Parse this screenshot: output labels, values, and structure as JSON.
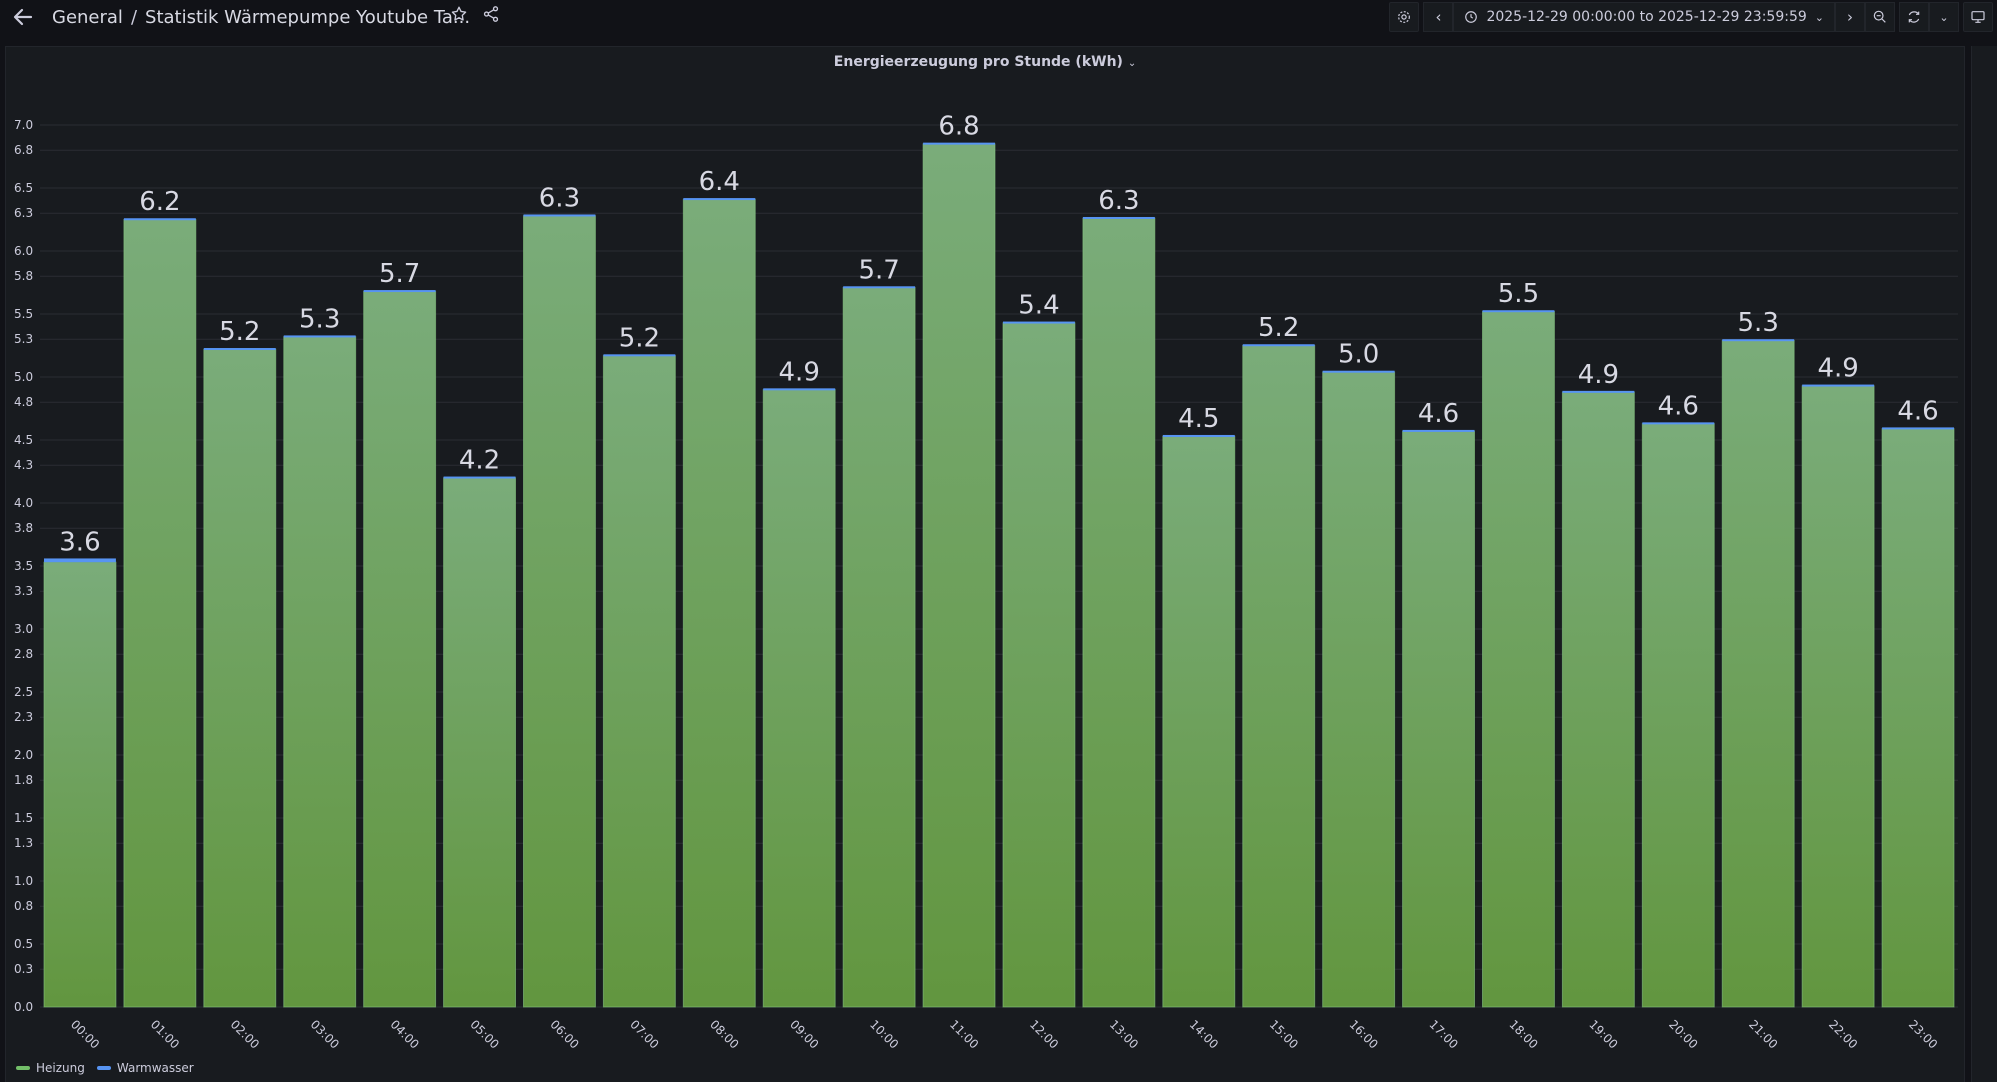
{
  "header": {
    "breadcrumb_root": "General",
    "breadcrumb_separator": "/",
    "breadcrumb_title": "Statistik Wärmepumpe Youtube Ta...",
    "icons": [
      "back-arrow-icon",
      "star-icon",
      "share-icon"
    ]
  },
  "toolbar": {
    "time_range": "2025-12-29 00:00:00 to 2025-12-29 23:59:59",
    "icons": [
      "gear-icon",
      "chevron-left-icon",
      "clock-icon",
      "chevron-down-icon",
      "chevron-right-icon",
      "zoom-out-icon",
      "refresh-icon",
      "chevron-down-icon",
      "tv-icon"
    ]
  },
  "panel": {
    "title": "Energieerzeugung pro Stunde (kWh)"
  },
  "colors": {
    "background": "#111217",
    "panel": "#181b1f",
    "heizung": "#73bf69",
    "warmwasser": "#5794f2",
    "text": "#ccccdc"
  },
  "chart_data": {
    "type": "bar",
    "stacked": true,
    "title": "Energieerzeugung pro Stunde (kWh)",
    "categories": [
      "00:00",
      "01:00",
      "02:00",
      "03:00",
      "04:00",
      "05:00",
      "06:00",
      "07:00",
      "08:00",
      "09:00",
      "10:00",
      "11:00",
      "12:00",
      "13:00",
      "14:00",
      "15:00",
      "16:00",
      "17:00",
      "18:00",
      "19:00",
      "20:00",
      "21:00",
      "22:00",
      "23:00"
    ],
    "series": [
      {
        "name": "Heizung",
        "color": "#73bf69",
        "values": [
          3.53,
          6.25,
          5.22,
          5.32,
          5.68,
          4.2,
          6.28,
          5.17,
          6.41,
          4.9,
          5.71,
          6.85,
          5.43,
          6.26,
          4.53,
          5.25,
          5.04,
          4.57,
          5.52,
          4.88,
          4.63,
          5.29,
          4.93,
          4.59
        ]
      },
      {
        "name": "Warmwasser",
        "color": "#5794f2",
        "values": [
          0.03,
          0.01,
          0.01,
          0.01,
          0.01,
          0.01,
          0.01,
          0.01,
          0.01,
          0.01,
          0.01,
          0.01,
          0.01,
          0.01,
          0.01,
          0.01,
          0.01,
          0.01,
          0.01,
          0.01,
          0.01,
          0.01,
          0.01,
          0.01
        ]
      }
    ],
    "totals_labels": [
      "3.6",
      "6.2",
      "5.2",
      "5.3",
      "5.7",
      "4.2",
      "6.3",
      "5.2",
      "6.4",
      "4.9",
      "5.7",
      "6.8",
      "5.4",
      "6.3",
      "4.5",
      "5.2",
      "5.0",
      "4.6",
      "5.5",
      "4.9",
      "4.6",
      "5.3",
      "4.9",
      "4.6"
    ],
    "y_ticks": [
      "0.0",
      "0.3",
      "0.5",
      "0.8",
      "1.0",
      "1.3",
      "1.5",
      "1.8",
      "2.0",
      "2.3",
      "2.5",
      "2.8",
      "3.0",
      "3.3",
      "3.5",
      "3.8",
      "4.0",
      "4.3",
      "4.5",
      "4.8",
      "5.0",
      "5.3",
      "5.5",
      "5.8",
      "6.0",
      "6.3",
      "6.5",
      "6.8",
      "7.0"
    ],
    "ylim": [
      0,
      7
    ],
    "grid": true,
    "legend_placement": "bottom-left"
  }
}
